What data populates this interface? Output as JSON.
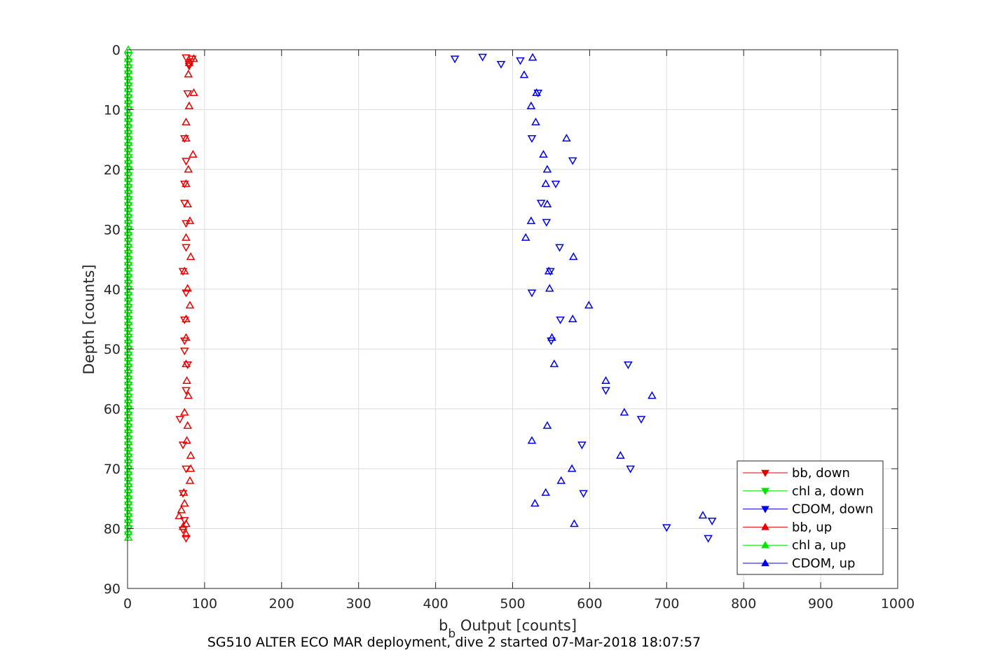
{
  "chart_data": {
    "type": "scatter",
    "title": "",
    "xlabel_main": "b",
    "xlabel_sub": "b",
    "xlabel_rest": " Output [counts]",
    "ylabel": "Depth [counts]",
    "caption": "SG510 ALTER ECO MAR deployment, dive 2 started 07-Mar-2018 18:07:57",
    "xlim": [
      0,
      1000
    ],
    "ylim": [
      0,
      90
    ],
    "y_reversed": true,
    "x_ticks": [
      "0",
      "100",
      "200",
      "300",
      "400",
      "500",
      "600",
      "700",
      "800",
      "900",
      "1000"
    ],
    "y_ticks": [
      "0",
      "10",
      "20",
      "30",
      "40",
      "50",
      "60",
      "70",
      "80",
      "90"
    ],
    "grid": true,
    "legend_position": "bottom-right",
    "series": [
      {
        "name": "bb, down",
        "color": "#e60000",
        "marker": "triangle-down",
        "points": [
          [
            76,
            1.3
          ],
          [
            84,
            1.5
          ],
          [
            82,
            2.0
          ],
          [
            80,
            2.4
          ],
          [
            80,
            2.7
          ],
          [
            78,
            7.3
          ],
          [
            74,
            14.8
          ],
          [
            76,
            18.6
          ],
          [
            74,
            22.4
          ],
          [
            74,
            25.6
          ],
          [
            76,
            29.0
          ],
          [
            76,
            33.0
          ],
          [
            72,
            37.0
          ],
          [
            76,
            40.6
          ],
          [
            74,
            45.1
          ],
          [
            74,
            48.6
          ],
          [
            74,
            50.3
          ],
          [
            78,
            52.6
          ],
          [
            76,
            56.9
          ],
          [
            68,
            61.7
          ],
          [
            72,
            66.0
          ],
          [
            76,
            70.0
          ],
          [
            72,
            74.1
          ],
          [
            74,
            78.6
          ],
          [
            72,
            80.2
          ],
          [
            76,
            81.6
          ]
        ]
      },
      {
        "name": "chl a, down",
        "color": "#00e600",
        "marker": "triangle-down",
        "points": [
          [
            1,
            1
          ],
          [
            1,
            2
          ],
          [
            1,
            3
          ],
          [
            1,
            4
          ],
          [
            1,
            5
          ],
          [
            1,
            6
          ],
          [
            1,
            7
          ],
          [
            1,
            8
          ],
          [
            1,
            9
          ],
          [
            1,
            10
          ],
          [
            1,
            11
          ],
          [
            1,
            12
          ],
          [
            1,
            13
          ],
          [
            1,
            14
          ],
          [
            1,
            15
          ],
          [
            1,
            16
          ],
          [
            1,
            17
          ],
          [
            1,
            18
          ],
          [
            1,
            19
          ],
          [
            1,
            20
          ],
          [
            1,
            21
          ],
          [
            1,
            22
          ],
          [
            1,
            23
          ],
          [
            1,
            24
          ],
          [
            1,
            25
          ],
          [
            1,
            26
          ],
          [
            1,
            27
          ],
          [
            1,
            28
          ],
          [
            1,
            29
          ],
          [
            1,
            30
          ],
          [
            1,
            31
          ],
          [
            1,
            32
          ],
          [
            1,
            33
          ],
          [
            1,
            34
          ],
          [
            1,
            35
          ],
          [
            1,
            36
          ],
          [
            1,
            37
          ],
          [
            1,
            38
          ],
          [
            1,
            39
          ],
          [
            1,
            40
          ],
          [
            1,
            41
          ],
          [
            1,
            42
          ],
          [
            1,
            43
          ],
          [
            1,
            44
          ],
          [
            1,
            45
          ],
          [
            1,
            46
          ],
          [
            1,
            47
          ],
          [
            1,
            48
          ],
          [
            1,
            49
          ],
          [
            1,
            50
          ],
          [
            1,
            51
          ],
          [
            1,
            52
          ],
          [
            1,
            53
          ],
          [
            1,
            54
          ],
          [
            1,
            55
          ],
          [
            1,
            56
          ],
          [
            1,
            57
          ],
          [
            1,
            58
          ],
          [
            1,
            59
          ],
          [
            1,
            60
          ],
          [
            1,
            61
          ],
          [
            1,
            62
          ],
          [
            1,
            63
          ],
          [
            1,
            64
          ],
          [
            1,
            65
          ],
          [
            1,
            66
          ],
          [
            1,
            67
          ],
          [
            1,
            68
          ],
          [
            1,
            69
          ],
          [
            1,
            70
          ],
          [
            1,
            71
          ],
          [
            1,
            72
          ],
          [
            1,
            73
          ],
          [
            1,
            74
          ],
          [
            1,
            75
          ],
          [
            1,
            76
          ],
          [
            1,
            77
          ],
          [
            1,
            78
          ],
          [
            1,
            79
          ],
          [
            1,
            80
          ],
          [
            1,
            81
          ]
        ]
      },
      {
        "name": "CDOM, down",
        "color": "#0000e6",
        "marker": "triangle-down",
        "points": [
          [
            425,
            1.5
          ],
          [
            461,
            1.2
          ],
          [
            485,
            2.4
          ],
          [
            510,
            1.8
          ],
          [
            533,
            7.2
          ],
          [
            525,
            14.8
          ],
          [
            578,
            18.5
          ],
          [
            556,
            22.4
          ],
          [
            537,
            25.6
          ],
          [
            544,
            28.8
          ],
          [
            561,
            33.0
          ],
          [
            549,
            37.0
          ],
          [
            525,
            40.6
          ],
          [
            562,
            45.1
          ],
          [
            550,
            48.6
          ],
          [
            650,
            52.6
          ],
          [
            621,
            56.9
          ],
          [
            667,
            61.7
          ],
          [
            590,
            66.0
          ],
          [
            653,
            70.0
          ],
          [
            592,
            74.1
          ],
          [
            759,
            78.7
          ],
          [
            700,
            79.8
          ],
          [
            754,
            81.6
          ]
        ]
      },
      {
        "name": "bb, up",
        "color": "#e60000",
        "marker": "triangle-up",
        "points": [
          [
            86,
            1.5
          ],
          [
            80,
            2.2
          ],
          [
            79,
            4.1
          ],
          [
            86,
            7.2
          ],
          [
            80,
            9.4
          ],
          [
            76,
            12.1
          ],
          [
            76,
            14.8
          ],
          [
            85,
            17.5
          ],
          [
            79,
            20.0
          ],
          [
            76,
            22.4
          ],
          [
            78,
            25.8
          ],
          [
            81,
            28.6
          ],
          [
            76,
            31.4
          ],
          [
            82,
            34.6
          ],
          [
            74,
            37.0
          ],
          [
            78,
            39.9
          ],
          [
            81,
            42.7
          ],
          [
            76,
            45.0
          ],
          [
            76,
            48.1
          ],
          [
            76,
            52.5
          ],
          [
            77,
            55.3
          ],
          [
            79,
            57.8
          ],
          [
            74,
            60.6
          ],
          [
            78,
            62.8
          ],
          [
            77,
            65.3
          ],
          [
            82,
            67.8
          ],
          [
            82,
            70.0
          ],
          [
            81,
            72.0
          ],
          [
            73,
            74.0
          ],
          [
            74,
            75.8
          ],
          [
            70,
            76.9
          ],
          [
            67,
            77.9
          ],
          [
            76,
            79.2
          ],
          [
            72,
            79.7
          ],
          [
            76,
            80.9
          ]
        ]
      },
      {
        "name": "chl a, up",
        "color": "#00e600",
        "marker": "triangle-up",
        "points": [
          [
            1,
            0
          ],
          [
            1,
            1.5
          ],
          [
            1,
            2.5
          ],
          [
            1,
            3.5
          ],
          [
            1,
            4.5
          ],
          [
            1,
            5.5
          ],
          [
            1,
            6.5
          ],
          [
            1,
            7.5
          ],
          [
            1,
            8.5
          ],
          [
            1,
            9.5
          ],
          [
            1,
            10.5
          ],
          [
            1,
            11.5
          ],
          [
            1,
            12.5
          ],
          [
            1,
            13.5
          ],
          [
            1,
            14.5
          ],
          [
            1,
            15.5
          ],
          [
            1,
            16.5
          ],
          [
            1,
            17.5
          ],
          [
            1,
            18.5
          ],
          [
            1,
            19.5
          ],
          [
            1,
            20.5
          ],
          [
            1,
            21.5
          ],
          [
            1,
            22.5
          ],
          [
            1,
            23.5
          ],
          [
            1,
            24.5
          ],
          [
            1,
            25.5
          ],
          [
            1,
            26.5
          ],
          [
            1,
            27.5
          ],
          [
            1,
            28.5
          ],
          [
            1,
            29.5
          ],
          [
            1,
            30.5
          ],
          [
            1,
            31.5
          ],
          [
            1,
            32.5
          ],
          [
            1,
            33.5
          ],
          [
            1,
            34.5
          ],
          [
            1,
            35.5
          ],
          [
            1,
            36.5
          ],
          [
            1,
            37.5
          ],
          [
            1,
            38.5
          ],
          [
            1,
            39.5
          ],
          [
            1,
            40.5
          ],
          [
            1,
            41.5
          ],
          [
            1,
            42.5
          ],
          [
            1,
            43.5
          ],
          [
            1,
            44.5
          ],
          [
            1,
            45.5
          ],
          [
            1,
            46.5
          ],
          [
            1,
            47.5
          ],
          [
            1,
            48.5
          ],
          [
            1,
            49.5
          ],
          [
            1,
            50.5
          ],
          [
            1,
            51.5
          ],
          [
            1,
            52.5
          ],
          [
            1,
            53.5
          ],
          [
            1,
            54.5
          ],
          [
            1,
            55.5
          ],
          [
            1,
            56.5
          ],
          [
            1,
            57.5
          ],
          [
            1,
            58.5
          ],
          [
            1,
            59.5
          ],
          [
            1,
            60.5
          ],
          [
            1,
            61.5
          ],
          [
            1,
            62.5
          ],
          [
            1,
            63.5
          ],
          [
            1,
            64.5
          ],
          [
            1,
            65.5
          ],
          [
            1,
            66.5
          ],
          [
            1,
            67.5
          ],
          [
            1,
            68.5
          ],
          [
            1,
            69.5
          ],
          [
            1,
            70.5
          ],
          [
            1,
            71.5
          ],
          [
            1,
            72.5
          ],
          [
            1,
            73.5
          ],
          [
            1,
            74.5
          ],
          [
            1,
            75.5
          ],
          [
            1,
            76.5
          ],
          [
            1,
            77.5
          ],
          [
            1,
            78.5
          ],
          [
            1,
            79.5
          ],
          [
            1,
            80.5
          ],
          [
            1,
            81.5
          ]
        ]
      },
      {
        "name": "CDOM, up",
        "color": "#0000e6",
        "marker": "triangle-up",
        "points": [
          [
            526,
            1.3
          ],
          [
            515,
            4.2
          ],
          [
            531,
            7.2
          ],
          [
            524,
            9.4
          ],
          [
            530,
            12.1
          ],
          [
            570,
            14.8
          ],
          [
            540,
            17.5
          ],
          [
            545,
            20.0
          ],
          [
            543,
            22.4
          ],
          [
            545,
            25.8
          ],
          [
            524,
            28.6
          ],
          [
            517,
            31.4
          ],
          [
            579,
            34.6
          ],
          [
            547,
            37.0
          ],
          [
            548,
            39.9
          ],
          [
            599,
            42.7
          ],
          [
            578,
            45.0
          ],
          [
            551,
            48.1
          ],
          [
            554,
            52.5
          ],
          [
            621,
            55.3
          ],
          [
            681,
            57.8
          ],
          [
            645,
            60.6
          ],
          [
            545,
            62.8
          ],
          [
            525,
            65.3
          ],
          [
            640,
            67.8
          ],
          [
            577,
            70.0
          ],
          [
            563,
            72.0
          ],
          [
            543,
            74.0
          ],
          [
            529,
            75.8
          ],
          [
            747,
            77.8
          ],
          [
            580,
            79.2
          ]
        ]
      }
    ]
  }
}
